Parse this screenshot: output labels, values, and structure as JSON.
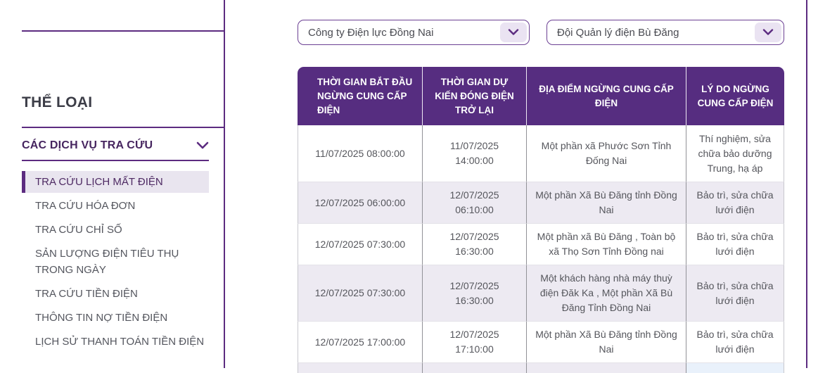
{
  "colors": {
    "accent_purple": "#5c2b80",
    "table_header_bg": "#562d80",
    "row_alt_bg": "#edeaf2",
    "active_item_bg": "#e9e5ef"
  },
  "sidebar": {
    "title": "THỂ LOẠI",
    "section": {
      "label": "CÁC DỊCH VỤ TRA CỨU"
    },
    "items": [
      {
        "label": "TRA CỨU LỊCH MẤT ĐIỆN",
        "active": true
      },
      {
        "label": "TRA CỨU HÓA ĐƠN",
        "active": false
      },
      {
        "label": "TRA CỨU CHỈ SỐ",
        "active": false
      },
      {
        "label": "SẢN LƯỢNG ĐIỆN TIÊU THỤ TRONG NGÀY",
        "active": false
      },
      {
        "label": "TRA CỨU TIỀN ĐIỆN",
        "active": false
      },
      {
        "label": "THÔNG TIN NỢ TIỀN ĐIỆN",
        "active": false
      },
      {
        "label": "LỊCH SỬ THANH TOÁN TIỀN ĐIỆN",
        "active": false
      }
    ]
  },
  "filters": {
    "company_select": {
      "value": "Công ty Điện lực Đồng Nai"
    },
    "team_select": {
      "value": "Đội Quản lý điện Bù Đăng"
    }
  },
  "table": {
    "columns": [
      "THỜI GIAN BẮT ĐẦU NGỪNG CUNG CẤP ĐIỆN",
      "THỜI GIAN DỰ KIẾN ĐÓNG ĐIỆN TRỞ LẠI",
      "ĐỊA ĐIỂM NGỪNG CUNG CẤP ĐIỆN",
      "LÝ DO NGỪNG CUNG CẤP ĐIỆN"
    ],
    "rows": [
      {
        "start": "11/07/2025 08:00:00",
        "end": "11/07/2025 14:00:00",
        "location": "Một phần xã Phước Sơn Tỉnh Đống Nai",
        "reason": "Thí nghiệm, sửa chữa bảo dưỡng Trung, hạ áp"
      },
      {
        "start": "12/07/2025 06:00:00",
        "end": "12/07/2025 06:10:00",
        "location": "Một phần Xã Bù Đăng tỉnh Đồng Nai",
        "reason": "Bảo trì, sửa chữa lưới điện"
      },
      {
        "start": "12/07/2025 07:30:00",
        "end": "12/07/2025 16:30:00",
        "location": "Một phần xã Bù Đăng , Toàn bộ xã Thọ Sơn Tỉnh Đồng nai",
        "reason": "Bảo trì, sửa chữa lưới điện"
      },
      {
        "start": "12/07/2025 07:30:00",
        "end": "12/07/2025 16:30:00",
        "location": "Một khách hàng nhà máy thuỳ điện Đăk Ka , Một phần Xã Bù Đăng Tỉnh Đồng Nai",
        "reason": "Bảo trì, sửa chữa lưới điện"
      },
      {
        "start": "12/07/2025 17:00:00",
        "end": "12/07/2025 17:10:00",
        "location": "Một phần Xã Bù Đăng tỉnh Đồng Nai",
        "reason": "Bảo trì, sửa chữa lưới điện"
      }
    ]
  }
}
